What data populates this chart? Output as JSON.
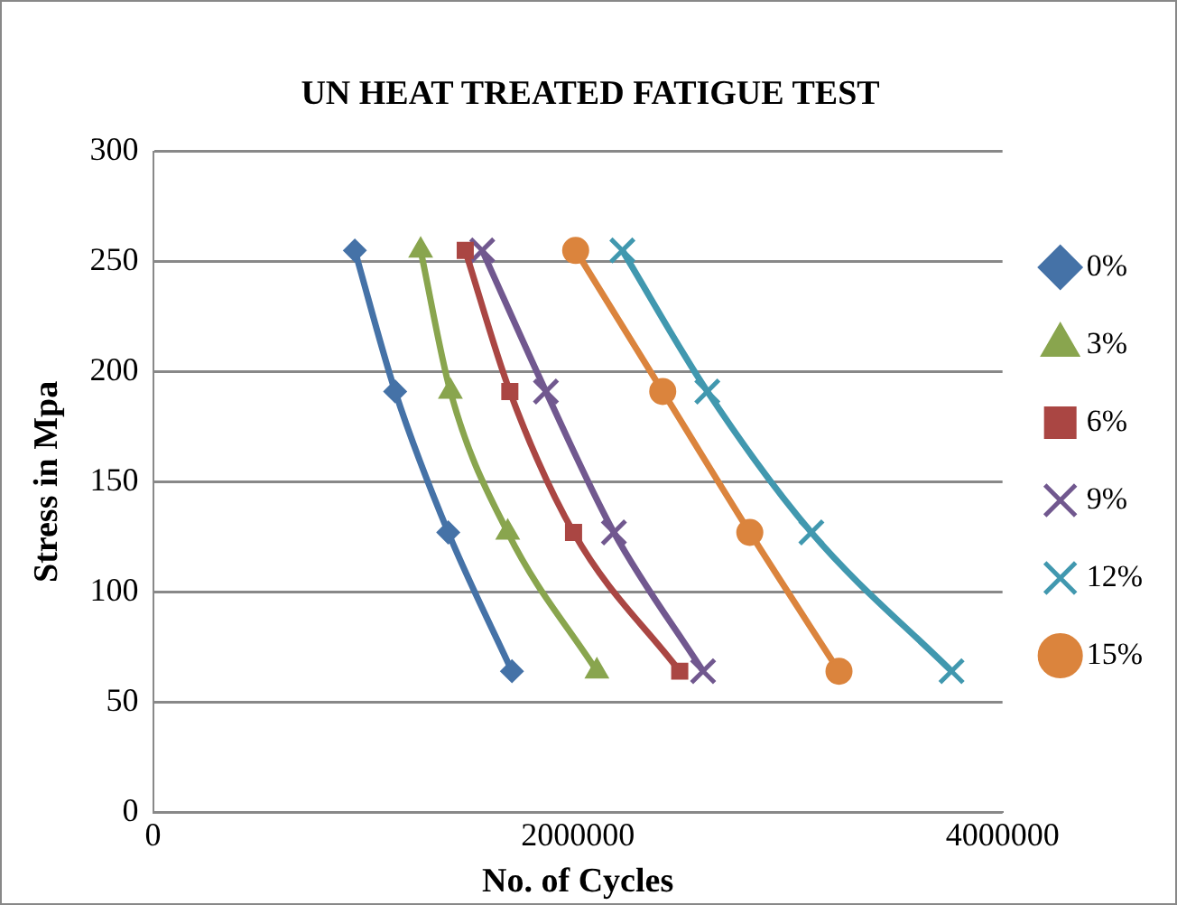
{
  "chart_data": {
    "type": "line",
    "title": "UN HEAT TREATED FATIGUE TEST",
    "xlabel": "No. of Cycles",
    "ylabel": "Stress in Mpa",
    "xlim": [
      0,
      4000000
    ],
    "xticks": [
      0,
      2000000,
      4000000
    ],
    "ylim": [
      0,
      300
    ],
    "yticks": [
      0,
      50,
      100,
      150,
      200,
      250,
      300
    ],
    "grid": "y",
    "legend": "right",
    "series": [
      {
        "name": "0%",
        "color": "#4572a7",
        "marker": "diamond",
        "x": [
          950000,
          1140000,
          1390000,
          1690000
        ],
        "values": [
          255,
          191,
          127,
          64
        ]
      },
      {
        "name": "3%",
        "color": "#89a54e",
        "marker": "triangle",
        "x": [
          1260000,
          1400000,
          1670000,
          2090000
        ],
        "values": [
          255,
          191,
          127,
          64
        ]
      },
      {
        "name": "6%",
        "color": "#aa4643",
        "marker": "square",
        "x": [
          1470000,
          1680000,
          1980000,
          2480000
        ],
        "values": [
          255,
          191,
          127,
          64
        ]
      },
      {
        "name": "9%",
        "color": "#71588f",
        "marker": "cross",
        "x": [
          1550000,
          1850000,
          2170000,
          2590000
        ],
        "values": [
          255,
          191,
          127,
          64
        ]
      },
      {
        "name": "12%",
        "color": "#4198af",
        "marker": "cross",
        "x": [
          2210000,
          2610000,
          3100000,
          3760000
        ],
        "values": [
          255,
          191,
          127,
          64
        ]
      },
      {
        "name": "15%",
        "color": "#db843d",
        "marker": "circle",
        "x": [
          1990000,
          2400000,
          2810000,
          3230000
        ],
        "values": [
          255,
          191,
          127,
          64
        ]
      }
    ]
  }
}
